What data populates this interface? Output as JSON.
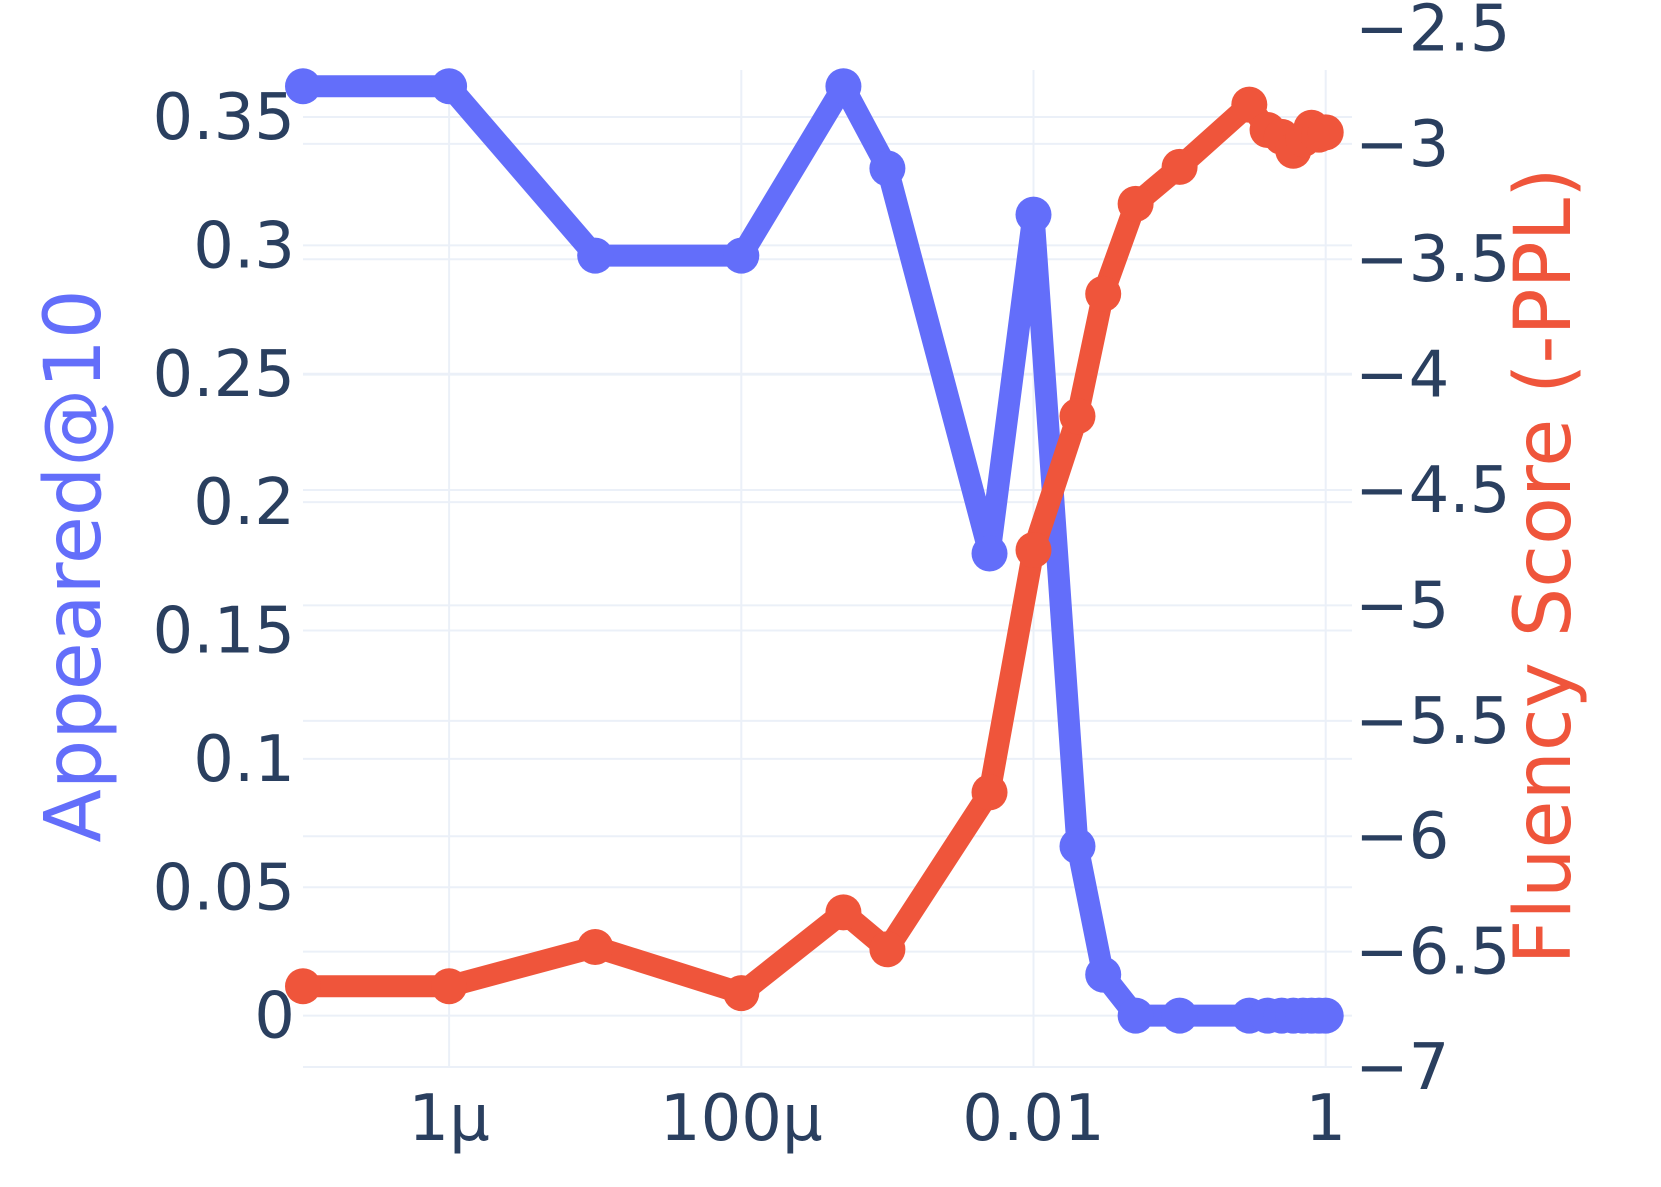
{
  "chart_data": {
    "type": "line",
    "title": "",
    "xlabel": "",
    "x_scale": "log",
    "x_ticks": [
      {
        "value": 1e-06,
        "label": "1μ"
      },
      {
        "value": 0.0001,
        "label": "100μ"
      },
      {
        "value": 0.01,
        "label": "0.01"
      },
      {
        "value": 1,
        "label": "1"
      }
    ],
    "grid": true,
    "y_left": {
      "label": "Appeared@10",
      "color": "#636efa",
      "range": [
        -0.02,
        0.38
      ],
      "ticks": [
        {
          "value": 0,
          "label": "0"
        },
        {
          "value": 0.05,
          "label": "0.05"
        },
        {
          "value": 0.1,
          "label": "0.1"
        },
        {
          "value": 0.15,
          "label": "0.15"
        },
        {
          "value": 0.2,
          "label": "0.2"
        },
        {
          "value": 0.25,
          "label": "0.25"
        },
        {
          "value": 0.3,
          "label": "0.3"
        },
        {
          "value": 0.35,
          "label": "0.35"
        }
      ]
    },
    "y_right": {
      "label": "Fluency Score (-PPL)",
      "color": "#ef553b",
      "range": [
        -7.0,
        -2.55
      ],
      "ticks": [
        {
          "value": -2.5,
          "label": "−2.5"
        },
        {
          "value": -3,
          "label": "−3"
        },
        {
          "value": -3.5,
          "label": "−3.5"
        },
        {
          "value": -4,
          "label": "−4"
        },
        {
          "value": -4.5,
          "label": "−4.5"
        },
        {
          "value": -5,
          "label": "−5"
        },
        {
          "value": -5.5,
          "label": "−5.5"
        },
        {
          "value": -6,
          "label": "−6"
        },
        {
          "value": -6.5,
          "label": "−6.5"
        },
        {
          "value": -7,
          "label": "−7"
        }
      ]
    },
    "series": [
      {
        "axis": "left",
        "color": "#636efa",
        "points": [
          {
            "x": 1e-07,
            "y": 0.362
          },
          {
            "x": 1e-06,
            "y": 0.362
          },
          {
            "x": 1e-05,
            "y": 0.296
          },
          {
            "x": 0.0001,
            "y": 0.296
          },
          {
            "x": 0.0005,
            "y": 0.362
          },
          {
            "x": 0.001,
            "y": 0.33
          },
          {
            "x": 0.005,
            "y": 0.18
          },
          {
            "x": 0.01,
            "y": 0.312
          },
          {
            "x": 0.02,
            "y": 0.066
          },
          {
            "x": 0.03,
            "y": 0.016
          },
          {
            "x": 0.05,
            "y": 0
          },
          {
            "x": 0.1,
            "y": 0
          },
          {
            "x": 0.3,
            "y": 0
          },
          {
            "x": 0.4,
            "y": 0
          },
          {
            "x": 0.5,
            "y": 0
          },
          {
            "x": 0.6,
            "y": 0
          },
          {
            "x": 0.7,
            "y": 0
          },
          {
            "x": 0.8,
            "y": 0
          },
          {
            "x": 0.9,
            "y": 0
          },
          {
            "x": 1,
            "y": 0
          }
        ]
      },
      {
        "axis": "right",
        "color": "#ef553b",
        "points": [
          {
            "x": 1e-07,
            "y": -6.65
          },
          {
            "x": 1e-06,
            "y": -6.65
          },
          {
            "x": 1e-05,
            "y": -6.48
          },
          {
            "x": 0.0001,
            "y": -6.68
          },
          {
            "x": 0.0005,
            "y": -6.33
          },
          {
            "x": 0.001,
            "y": -6.49
          },
          {
            "x": 0.005,
            "y": -5.81
          },
          {
            "x": 0.01,
            "y": -4.76
          },
          {
            "x": 0.02,
            "y": -4.18
          },
          {
            "x": 0.03,
            "y": -3.65
          },
          {
            "x": 0.05,
            "y": -3.26
          },
          {
            "x": 0.1,
            "y": -3.1
          },
          {
            "x": 0.3,
            "y": -2.83
          },
          {
            "x": 0.4,
            "y": -2.94
          },
          {
            "x": 0.5,
            "y": -2.97
          },
          {
            "x": 0.6,
            "y": -3.03
          },
          {
            "x": 0.7,
            "y": -2.98
          },
          {
            "x": 0.8,
            "y": -2.93
          },
          {
            "x": 0.9,
            "y": -2.96
          },
          {
            "x": 1,
            "y": -2.95
          }
        ]
      }
    ]
  }
}
